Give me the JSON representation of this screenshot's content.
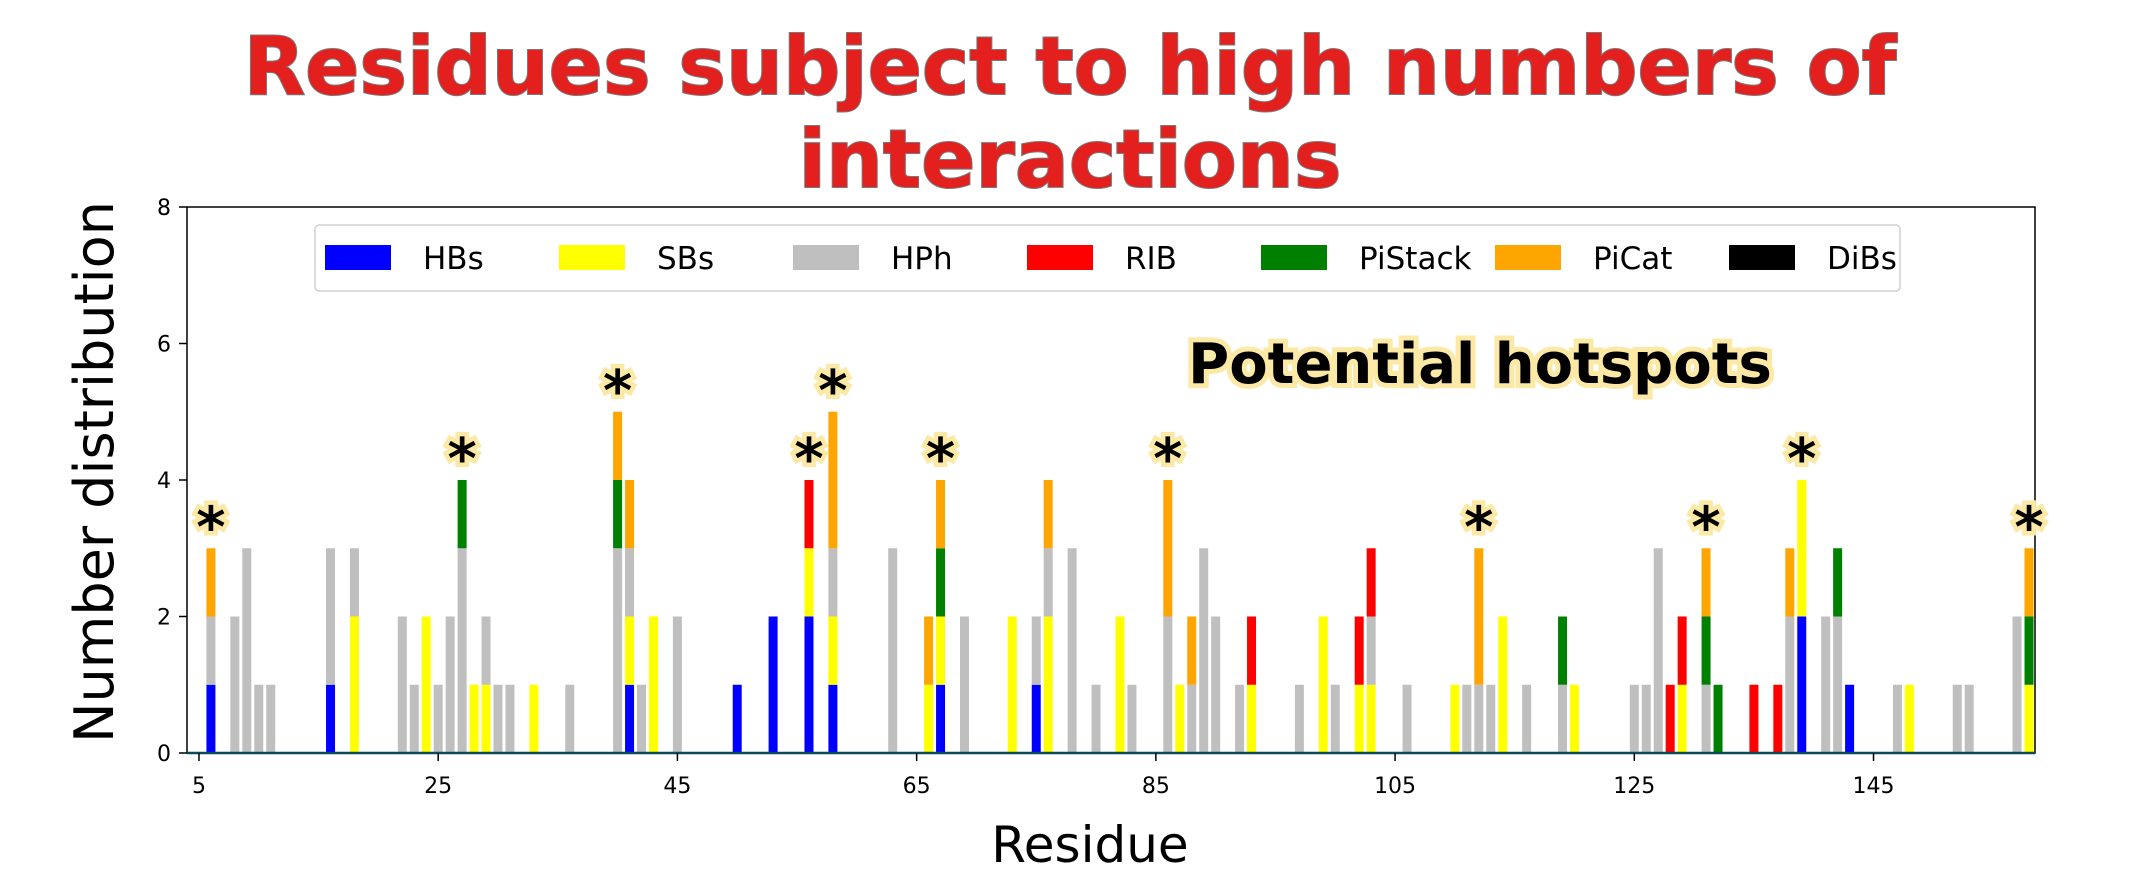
{
  "title": "Residues subject to high numbers of interactions",
  "chart_data": {
    "type": "bar",
    "stacked": true,
    "xlabel": "Residue",
    "ylabel": "Number distribution",
    "xlim": [
      5,
      158
    ],
    "ylim": [
      0,
      8
    ],
    "xticks": [
      5,
      25,
      45,
      65,
      85,
      105,
      125,
      145
    ],
    "yticks": [
      0,
      2,
      4,
      6,
      8
    ],
    "legend_position": "top",
    "annotation": "Potential hotspots",
    "hotspot_marker": "*",
    "series": [
      {
        "name": "HBs",
        "color": "#0000ff"
      },
      {
        "name": "SBs",
        "color": "#ffff00"
      },
      {
        "name": "HPh",
        "color": "#bfbfbf"
      },
      {
        "name": "RIB",
        "color": "#ff0000"
      },
      {
        "name": "PiStack",
        "color": "#008000"
      },
      {
        "name": "PiCat",
        "color": "#ffa500"
      },
      {
        "name": "DiBs",
        "color": "#000000"
      }
    ],
    "bars": [
      {
        "x": 6,
        "HBs": 1,
        "HPh": 1,
        "PiCat": 1,
        "hotspot": true
      },
      {
        "x": 8,
        "HPh": 2
      },
      {
        "x": 9,
        "HPh": 3
      },
      {
        "x": 10,
        "HPh": 1
      },
      {
        "x": 11,
        "HPh": 1
      },
      {
        "x": 16,
        "HBs": 1,
        "HPh": 2
      },
      {
        "x": 18,
        "SBs": 2,
        "HPh": 1
      },
      {
        "x": 22,
        "HPh": 2
      },
      {
        "x": 23,
        "HPh": 1
      },
      {
        "x": 24,
        "SBs": 2
      },
      {
        "x": 25,
        "HPh": 1
      },
      {
        "x": 26,
        "HPh": 2
      },
      {
        "x": 27,
        "HPh": 3,
        "PiStack": 1,
        "hotspot": true
      },
      {
        "x": 28,
        "SBs": 1
      },
      {
        "x": 29,
        "SBs": 1,
        "HPh": 1
      },
      {
        "x": 30,
        "HPh": 1
      },
      {
        "x": 31,
        "HPh": 1
      },
      {
        "x": 33,
        "SBs": 1
      },
      {
        "x": 36,
        "HPh": 1
      },
      {
        "x": 40,
        "HPh": 3,
        "PiStack": 1,
        "PiCat": 1,
        "hotspot": true
      },
      {
        "x": 41,
        "HBs": 1,
        "SBs": 1,
        "HPh": 1,
        "PiCat": 1
      },
      {
        "x": 42,
        "HPh": 1
      },
      {
        "x": 43,
        "SBs": 2
      },
      {
        "x": 45,
        "HPh": 2
      },
      {
        "x": 50,
        "HBs": 1
      },
      {
        "x": 53,
        "HBs": 2
      },
      {
        "x": 56,
        "HBs": 2,
        "SBs": 1,
        "RIB": 1,
        "hotspot": true
      },
      {
        "x": 58,
        "HBs": 1,
        "SBs": 1,
        "HPh": 1,
        "PiCat": 2,
        "hotspot": true
      },
      {
        "x": 63,
        "HPh": 3
      },
      {
        "x": 66,
        "SBs": 1,
        "PiCat": 1
      },
      {
        "x": 67,
        "HBs": 1,
        "SBs": 1,
        "PiStack": 1,
        "PiCat": 1,
        "hotspot": true
      },
      {
        "x": 69,
        "HPh": 2
      },
      {
        "x": 73,
        "SBs": 2
      },
      {
        "x": 75,
        "HBs": 1,
        "HPh": 1
      },
      {
        "x": 76,
        "SBs": 2,
        "HPh": 1,
        "PiCat": 1
      },
      {
        "x": 78,
        "HPh": 3
      },
      {
        "x": 80,
        "HPh": 1
      },
      {
        "x": 82,
        "SBs": 2
      },
      {
        "x": 83,
        "HPh": 1
      },
      {
        "x": 86,
        "HPh": 2,
        "PiCat": 2,
        "hotspot": true
      },
      {
        "x": 87,
        "SBs": 1
      },
      {
        "x": 88,
        "HPh": 1,
        "PiCat": 1
      },
      {
        "x": 89,
        "HPh": 3
      },
      {
        "x": 90,
        "HPh": 2
      },
      {
        "x": 92,
        "HPh": 1
      },
      {
        "x": 93,
        "SBs": 1,
        "RIB": 1
      },
      {
        "x": 97,
        "HPh": 1
      },
      {
        "x": 99,
        "SBs": 2
      },
      {
        "x": 100,
        "HPh": 1
      },
      {
        "x": 102,
        "SBs": 1,
        "RIB": 1
      },
      {
        "x": 103,
        "SBs": 1,
        "HPh": 1,
        "RIB": 1
      },
      {
        "x": 106,
        "HPh": 1
      },
      {
        "x": 110,
        "SBs": 1
      },
      {
        "x": 111,
        "HPh": 1
      },
      {
        "x": 112,
        "HPh": 1,
        "PiCat": 2,
        "hotspot": true
      },
      {
        "x": 113,
        "HPh": 1
      },
      {
        "x": 114,
        "SBs": 2
      },
      {
        "x": 116,
        "HPh": 1
      },
      {
        "x": 119,
        "HPh": 1,
        "PiStack": 1
      },
      {
        "x": 120,
        "SBs": 1
      },
      {
        "x": 125,
        "HPh": 1
      },
      {
        "x": 126,
        "HPh": 1
      },
      {
        "x": 127,
        "HPh": 3
      },
      {
        "x": 128,
        "RIB": 1
      },
      {
        "x": 129,
        "SBs": 1,
        "RIB": 1
      },
      {
        "x": 131,
        "HPh": 1,
        "PiStack": 1,
        "PiCat": 1,
        "hotspot": true
      },
      {
        "x": 132,
        "PiStack": 1
      },
      {
        "x": 135,
        "RIB": 1
      },
      {
        "x": 137,
        "RIB": 1
      },
      {
        "x": 138,
        "HPh": 2,
        "PiCat": 1
      },
      {
        "x": 139,
        "HBs": 2,
        "SBs": 2,
        "hotspot": true
      },
      {
        "x": 141,
        "HPh": 2
      },
      {
        "x": 142,
        "HPh": 2,
        "PiStack": 1
      },
      {
        "x": 143,
        "HBs": 1
      },
      {
        "x": 147,
        "HPh": 1
      },
      {
        "x": 148,
        "SBs": 1
      },
      {
        "x": 152,
        "HPh": 1
      },
      {
        "x": 153,
        "HPh": 1
      },
      {
        "x": 157,
        "HPh": 2
      },
      {
        "x": 158,
        "SBs": 1,
        "PiStack": 1,
        "PiCat": 1,
        "hotspot": true
      }
    ]
  }
}
